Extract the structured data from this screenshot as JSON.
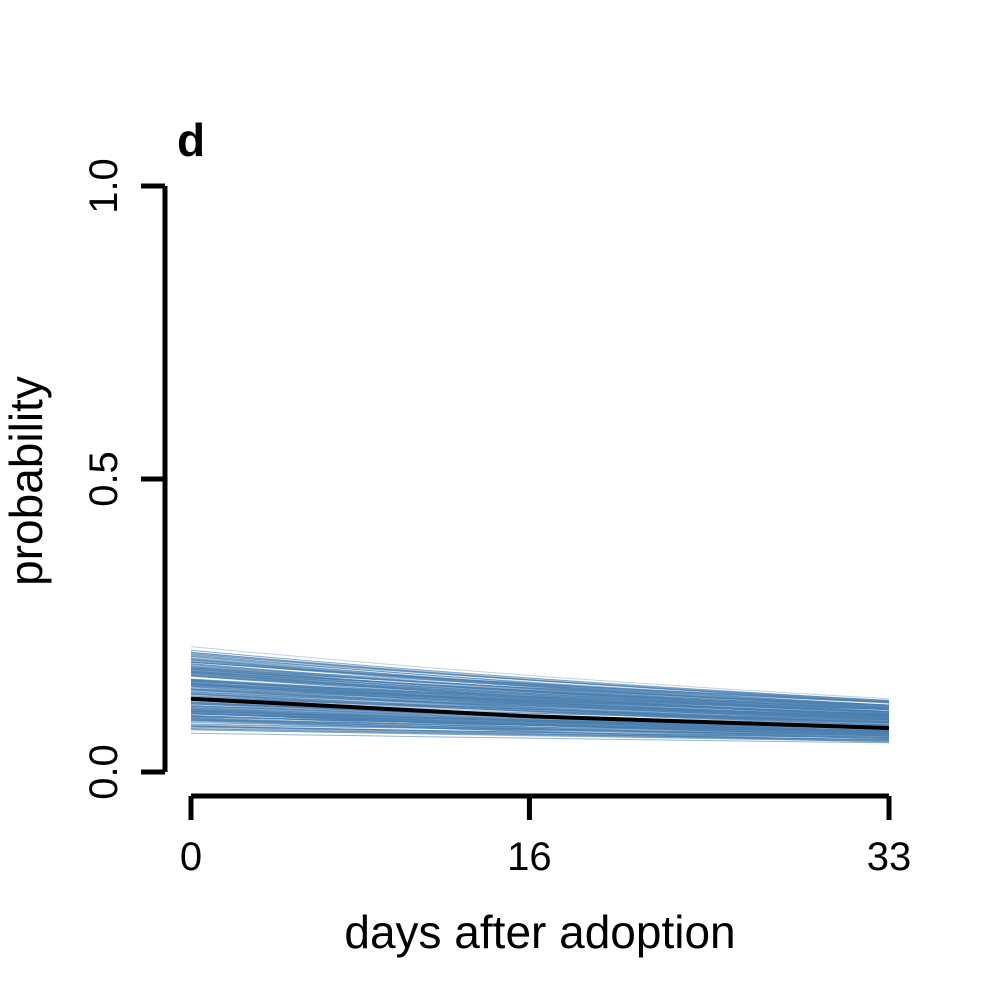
{
  "chart_data": {
    "type": "line",
    "panel_label": "d",
    "title": "",
    "xlabel": "days after adoption",
    "ylabel": "probability",
    "xlim": [
      0,
      33
    ],
    "ylim": [
      0,
      1
    ],
    "x_ticks": [
      "0",
      "16",
      "33"
    ],
    "y_ticks": [
      "0.0",
      "0.5",
      "1.0"
    ],
    "grid": false,
    "legend": "none",
    "colors": {
      "draws": "#4a7fb0",
      "mean": "#000000"
    },
    "mean_line": {
      "x": [
        0,
        16,
        33
      ],
      "y": [
        0.125,
        0.095,
        0.075
      ]
    },
    "posterior_draws": {
      "count": 200,
      "y_at_0_range": [
        0.05,
        0.23
      ],
      "y_at_33_range": [
        0.045,
        0.13
      ]
    }
  }
}
